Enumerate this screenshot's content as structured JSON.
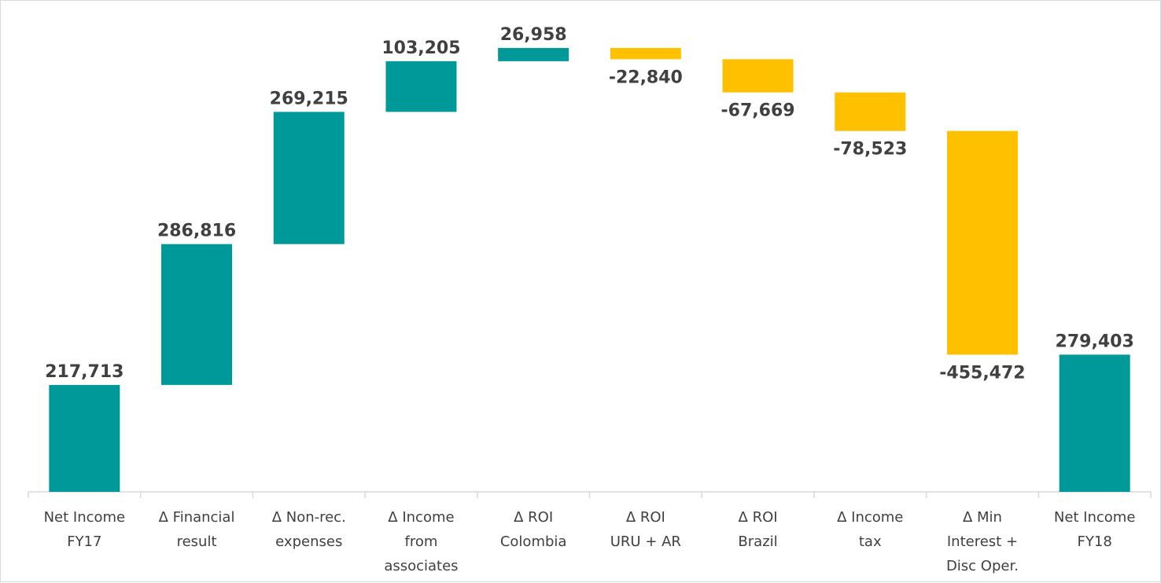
{
  "chart_data": {
    "type": "bar",
    "subtype": "waterfall",
    "categories": [
      [
        "Net Income",
        "FY17"
      ],
      [
        "Δ Financial",
        "result"
      ],
      [
        "Δ Non-rec.",
        "expenses"
      ],
      [
        "Δ Income",
        "from",
        "associates"
      ],
      [
        "Δ ROI",
        "Colombia"
      ],
      [
        "Δ ROI",
        "URU + AR"
      ],
      [
        "Δ ROI",
        "Brazil"
      ],
      [
        "Δ Income",
        "tax"
      ],
      [
        "Δ Min",
        "Interest +",
        "Disc Oper."
      ],
      [
        "Net Income",
        "FY18"
      ]
    ],
    "values": [
      217713,
      286816,
      269215,
      103205,
      26958,
      -22840,
      -67669,
      -78523,
      -455472,
      279403
    ],
    "value_labels": [
      "217,713",
      "286,816",
      "269,215",
      "103,205",
      "26,958",
      "-22,840",
      "-67,669",
      "-78,523",
      "-455,472",
      "279,403"
    ],
    "kinds": [
      "total",
      "delta",
      "delta",
      "delta",
      "delta",
      "delta",
      "delta",
      "delta",
      "delta",
      "total"
    ],
    "colors": {
      "increase": "#009999",
      "decrease": "#FFC000",
      "total": "#009999",
      "axis": "#d9d9d9",
      "text": "#404040"
    },
    "ylim": [
      0,
      960000
    ],
    "grid": false,
    "legend": "none"
  }
}
